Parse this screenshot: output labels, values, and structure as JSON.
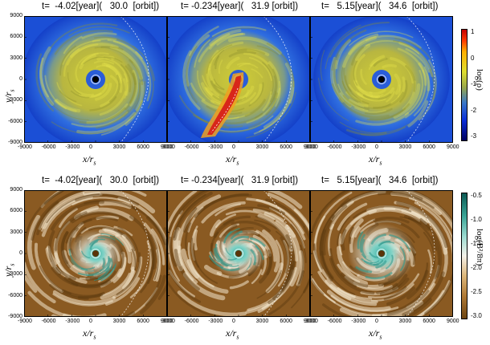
{
  "row1": {
    "titles": [
      "t=  -4.02[year](   30.0  [orbit])",
      "t= -0.234[year](   31.9 [orbit])",
      "t=   5.15[year](   34.6  [orbit])"
    ],
    "colorbar": {
      "label": "log(ρ)",
      "ticks": [
        "1",
        "0",
        "-1",
        "-2",
        "-3"
      ]
    }
  },
  "row2": {
    "titles": [
      "t=  -4.02[year](   30.0  [orbit])",
      "t= -0.234[year](   31.9 [orbit])",
      "t=   5.15[year](   34.6  [orbit])"
    ],
    "colorbar": {
      "label": "log(B²/8π)",
      "ticks": [
        "-0.5",
        "-1.0",
        "-1.5",
        "-2.0",
        "-2.5",
        "-3.0"
      ]
    }
  },
  "axes": {
    "xlabel": "x/r",
    "xlabel_sub": "s",
    "ylabel": "y/r",
    "ylabel_sub": "s",
    "xticks": [
      "-9000",
      "-6000",
      "-3000",
      "0",
      "3000",
      "6000",
      "9000"
    ],
    "yticks": [
      "9000",
      "6000",
      "3000",
      "0",
      "-3000",
      "-6000",
      "-9000"
    ]
  },
  "colors": {
    "density_bg": "#1b4fd6",
    "density_disk": "#bfbf2a",
    "density_stream": "#d8261a",
    "magnetic_bg": "#8a5a22",
    "magnetic_core": "#5fc4b8"
  }
}
